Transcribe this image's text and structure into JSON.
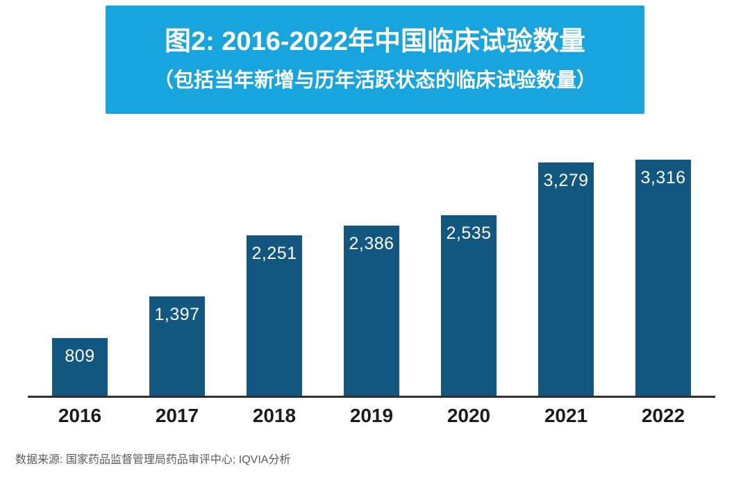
{
  "header": {
    "title": "图2: 2016-2022年中国临床试验数量",
    "subtitle": "（包括当年新增与历年活跃状态的临床试验数量）"
  },
  "chart_data": {
    "type": "bar",
    "categories": [
      "2016",
      "2017",
      "2018",
      "2019",
      "2020",
      "2021",
      "2022"
    ],
    "values": [
      809,
      1397,
      2251,
      2386,
      2535,
      3279,
      3316
    ],
    "value_labels": [
      "809",
      "1,397",
      "2,251",
      "2,386",
      "2,535",
      "3,279",
      "3,316"
    ],
    "title": "图2: 2016-2022年中国临床试验数量",
    "subtitle": "（包括当年新增与历年活跃状态的临床试验数量）",
    "xlabel": "",
    "ylabel": "",
    "ylim": [
      0,
      3400
    ],
    "grid": false,
    "legend": false,
    "bar_color": "#11577f",
    "label_position": "inside-top"
  },
  "footer": {
    "source": "数据来源: 国家药品监督管理局药品审评中心; IQVIA分析"
  },
  "colors": {
    "banner": "#18a5de",
    "bar": "#11577f",
    "axis": "#2f2f2f",
    "source_text": "#595959"
  }
}
